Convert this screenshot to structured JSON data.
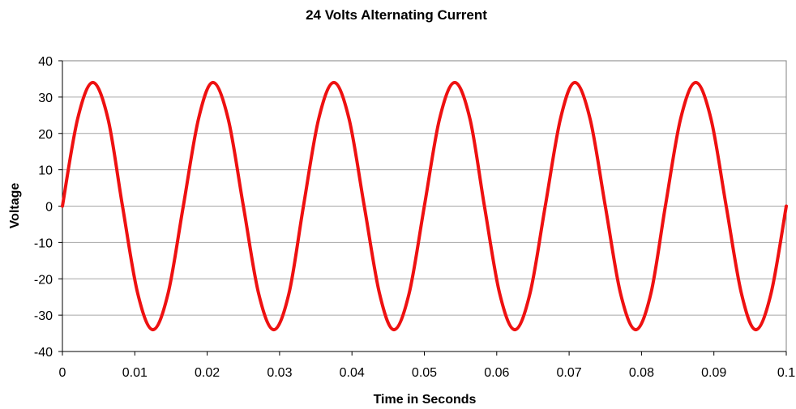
{
  "chart_data": {
    "type": "line",
    "title": "24 Volts Alternating Current",
    "xlabel": "Time in Seconds",
    "ylabel": "Voltage",
    "xlim": [
      0,
      0.1
    ],
    "ylim": [
      -40,
      40
    ],
    "x_ticks": [
      0,
      0.01,
      0.02,
      0.03,
      0.04,
      0.05,
      0.06,
      0.07,
      0.08,
      0.09,
      0.1
    ],
    "y_ticks": [
      -40,
      -30,
      -20,
      -10,
      0,
      10,
      20,
      30,
      40
    ],
    "x_tick_labels": [
      "0",
      "0.01",
      "0.02",
      "0.03",
      "0.04",
      "0.05",
      "0.06",
      "0.07",
      "0.08",
      "0.09",
      "0.1"
    ],
    "y_tick_labels": [
      "-40",
      "-30",
      "-20",
      "-10",
      "0",
      "10",
      "20",
      "30",
      "40"
    ],
    "grid": "horizontal",
    "legend": "none",
    "series": [
      {
        "color": "#ee1111",
        "x": [
          0,
          0.0021,
          0.0042,
          0.0063,
          0.0083,
          0.0104,
          0.0125,
          0.0146,
          0.0167,
          0.0188,
          0.0208,
          0.0229,
          0.025,
          0.0271,
          0.0292,
          0.0313,
          0.0333,
          0.0354,
          0.0375,
          0.0396,
          0.0417,
          0.0438,
          0.0458,
          0.0479,
          0.05,
          0.0521,
          0.0542,
          0.0563,
          0.0583,
          0.0604,
          0.0625,
          0.0646,
          0.0667,
          0.0688,
          0.0708,
          0.0729,
          0.075,
          0.0771,
          0.0792,
          0.0813,
          0.0833,
          0.0854,
          0.0875,
          0.0896,
          0.0917,
          0.0938,
          0.0958,
          0.0979,
          0.1
        ],
        "y": [
          0,
          24,
          34,
          24,
          0,
          -24,
          -34,
          -24,
          0,
          24,
          34,
          24,
          0,
          -24,
          -34,
          -24,
          0,
          24,
          34,
          24,
          0,
          -24,
          -34,
          -24,
          0,
          24,
          34,
          24,
          0,
          -24,
          -34,
          -24,
          0,
          24,
          34,
          24,
          0,
          -24,
          -34,
          -24,
          0,
          24,
          34,
          24,
          0,
          -24,
          -34,
          -24,
          0
        ]
      }
    ]
  }
}
